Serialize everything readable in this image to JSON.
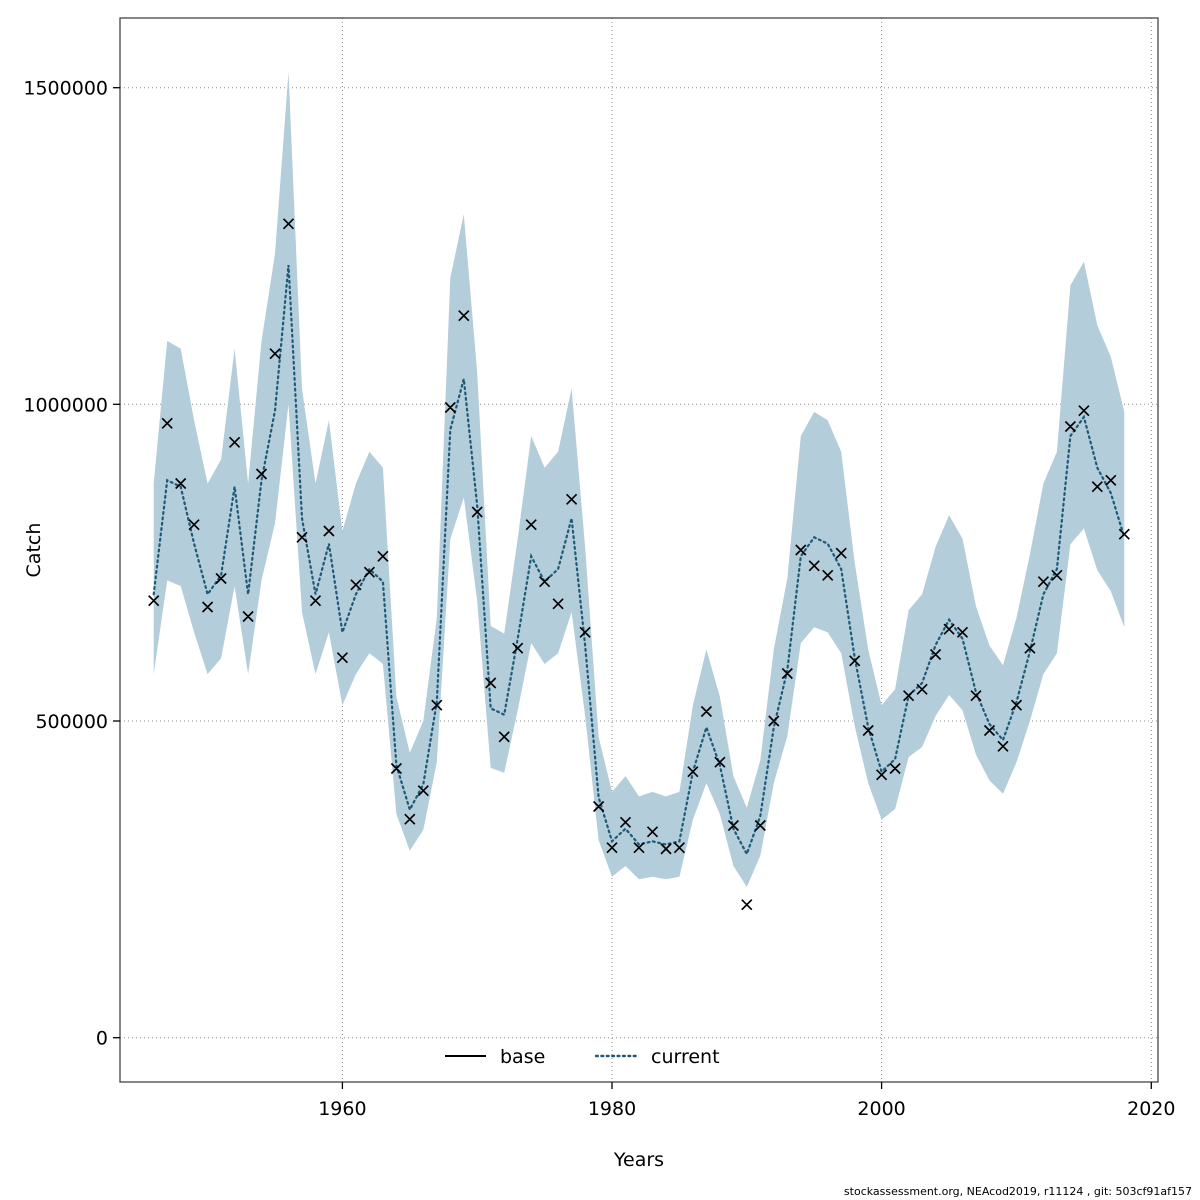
{
  "page": {
    "footer": "stockassessment.org, NEAcod2019, r11124 , git: 503cf91af157"
  },
  "chart_data": {
    "type": "line",
    "title": "",
    "xlabel": "Years",
    "ylabel": "Catch",
    "xlim": [
      1943.5,
      2020.5
    ],
    "ylim": [
      -70000,
      1610000
    ],
    "xticks": [
      1960,
      1980,
      2000,
      2020
    ],
    "yticks": [
      0,
      500000,
      1000000,
      1500000
    ],
    "grid": true,
    "legend": {
      "position": "bottom-center",
      "entries": [
        {
          "label": "base",
          "style": "solid"
        },
        {
          "label": "current",
          "style": "dotted"
        }
      ]
    },
    "style": {
      "band_color": "#b4cdda",
      "line_color": "#1d5a78",
      "base_color": "#000000",
      "marker_color": "#000000",
      "grid_color": "#8a8a8a",
      "box_color": "#444444"
    },
    "x": [
      1946,
      1947,
      1948,
      1949,
      1950,
      1951,
      1952,
      1953,
      1954,
      1955,
      1956,
      1957,
      1958,
      1959,
      1960,
      1961,
      1962,
      1963,
      1964,
      1965,
      1966,
      1967,
      1968,
      1969,
      1970,
      1971,
      1972,
      1973,
      1974,
      1975,
      1976,
      1977,
      1978,
      1979,
      1980,
      1981,
      1982,
      1983,
      1984,
      1985,
      1986,
      1987,
      1988,
      1989,
      1990,
      1991,
      1992,
      1993,
      1994,
      1995,
      1996,
      1997,
      1998,
      1999,
      2000,
      2001,
      2002,
      2003,
      2004,
      2005,
      2006,
      2007,
      2008,
      2009,
      2010,
      2011,
      2012,
      2013,
      2014,
      2015,
      2016,
      2017,
      2018
    ],
    "series": [
      {
        "name": "current",
        "style": "dotted",
        "values": [
          700000,
          880000,
          870000,
          780000,
          700000,
          730000,
          870000,
          700000,
          880000,
          990000,
          1220000,
          820000,
          700000,
          780000,
          640000,
          700000,
          740000,
          720000,
          430000,
          360000,
          400000,
          530000,
          960000,
          1040000,
          840000,
          520000,
          510000,
          630000,
          760000,
          720000,
          740000,
          820000,
          620000,
          380000,
          310000,
          330000,
          305000,
          310000,
          305000,
          310000,
          420000,
          490000,
          430000,
          330000,
          290000,
          350000,
          490000,
          580000,
          760000,
          790000,
          780000,
          740000,
          600000,
          490000,
          420000,
          440000,
          540000,
          560000,
          620000,
          660000,
          630000,
          545000,
          495000,
          470000,
          530000,
          610000,
          700000,
          740000,
          950000,
          980000,
          900000,
          860000,
          790000
        ]
      },
      {
        "name": "observed_catch",
        "style": "x-markers",
        "values": [
          690000,
          970000,
          875000,
          810000,
          680000,
          725000,
          940000,
          665000,
          890000,
          1080000,
          1285000,
          790000,
          690000,
          800000,
          600000,
          715000,
          735000,
          760000,
          425000,
          345000,
          390000,
          525000,
          995000,
          1140000,
          830000,
          560000,
          475000,
          615000,
          810000,
          720000,
          685000,
          850000,
          640000,
          365000,
          300000,
          340000,
          300000,
          325000,
          298000,
          300000,
          420000,
          515000,
          435000,
          335000,
          210000,
          335000,
          500000,
          575000,
          770000,
          745000,
          730000,
          765000,
          595000,
          485000,
          415000,
          425000,
          540000,
          550000,
          605000,
          645000,
          640000,
          540000,
          485000,
          460000,
          525000,
          615000,
          720000,
          730000,
          965000,
          990000,
          870000,
          880000,
          795000
        ]
      }
    ],
    "band": {
      "name": "confidence-interval",
      "lower": [
        574000,
        722000,
        713000,
        640000,
        574000,
        599000,
        713000,
        574000,
        722000,
        812000,
        1000000,
        672000,
        574000,
        640000,
        525000,
        574000,
        607000,
        590000,
        353000,
        295000,
        328000,
        435000,
        787000,
        853000,
        689000,
        426000,
        418000,
        517000,
        623000,
        590000,
        607000,
        672000,
        508000,
        312000,
        254000,
        271000,
        250000,
        254000,
        250000,
        254000,
        344000,
        402000,
        353000,
        271000,
        238000,
        287000,
        402000,
        476000,
        623000,
        648000,
        640000,
        607000,
        492000,
        402000,
        344000,
        361000,
        443000,
        459000,
        508000,
        541000,
        517000,
        447000,
        406000,
        385000,
        435000,
        500000,
        574000,
        607000,
        779000,
        804000,
        738000,
        705000,
        648000
      ],
      "upper": [
        875000,
        1100000,
        1088000,
        975000,
        875000,
        913000,
        1088000,
        875000,
        1100000,
        1238000,
        1525000,
        1025000,
        875000,
        975000,
        800000,
        875000,
        925000,
        900000,
        538000,
        450000,
        500000,
        663000,
        1200000,
        1300000,
        1050000,
        650000,
        638000,
        788000,
        950000,
        900000,
        925000,
        1025000,
        775000,
        475000,
        388000,
        413000,
        381000,
        388000,
        381000,
        388000,
        525000,
        613000,
        538000,
        413000,
        363000,
        438000,
        613000,
        725000,
        950000,
        988000,
        975000,
        925000,
        750000,
        613000,
        525000,
        550000,
        675000,
        700000,
        775000,
        825000,
        788000,
        681000,
        619000,
        588000,
        663000,
        763000,
        875000,
        925000,
        1188000,
        1225000,
        1125000,
        1075000,
        988000
      ]
    }
  }
}
